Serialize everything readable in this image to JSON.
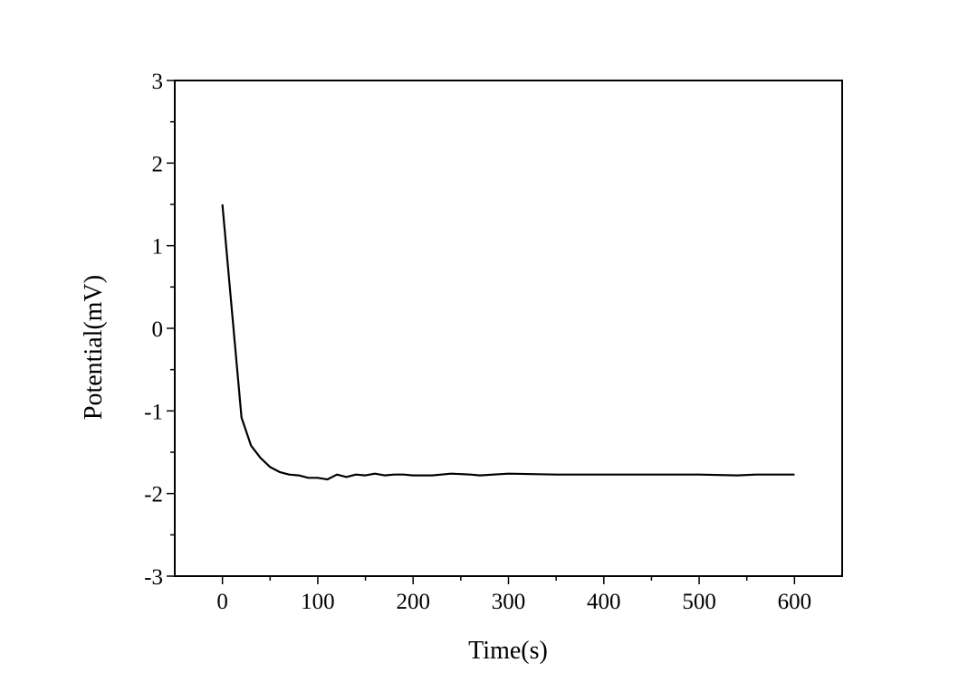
{
  "chart_data": {
    "type": "line",
    "title": "",
    "xlabel": "Time(s)",
    "ylabel": "Potential(mV)",
    "xlim": [
      -50,
      650
    ],
    "ylim": [
      -3,
      3
    ],
    "x_ticks": [
      0,
      100,
      200,
      300,
      400,
      500,
      600
    ],
    "x_tick_labels": [
      "0",
      "100",
      "200",
      "300",
      "400",
      "500",
      "600"
    ],
    "x_minor_ticks": [
      50,
      150,
      250,
      350,
      450,
      550
    ],
    "y_ticks": [
      3,
      2,
      1,
      0,
      -1,
      -2,
      -3
    ],
    "y_tick_labels": [
      "3",
      "2",
      "1",
      "0",
      "-1",
      "-2",
      "-3"
    ],
    "y_minor_ticks": [
      2.5,
      1.5,
      0.5,
      -0.5,
      -1.5,
      -2.5
    ],
    "grid": false,
    "legend": "none",
    "line_color": "#000000",
    "series": [
      {
        "x": [
          0,
          10,
          20,
          30,
          40,
          50,
          60,
          70,
          80,
          90,
          100,
          110,
          120,
          130,
          140,
          150,
          160,
          170,
          180,
          190,
          200,
          220,
          240,
          260,
          270,
          300,
          350,
          400,
          450,
          500,
          540,
          560,
          600
        ],
        "y": [
          1.5,
          0.2,
          -1.08,
          -1.42,
          -1.57,
          -1.68,
          -1.74,
          -1.77,
          -1.78,
          -1.81,
          -1.81,
          -1.83,
          -1.77,
          -1.8,
          -1.77,
          -1.78,
          -1.76,
          -1.78,
          -1.77,
          -1.77,
          -1.78,
          -1.78,
          -1.76,
          -1.77,
          -1.78,
          -1.76,
          -1.77,
          -1.77,
          -1.77,
          -1.77,
          -1.78,
          -1.77,
          -1.77
        ]
      }
    ]
  }
}
